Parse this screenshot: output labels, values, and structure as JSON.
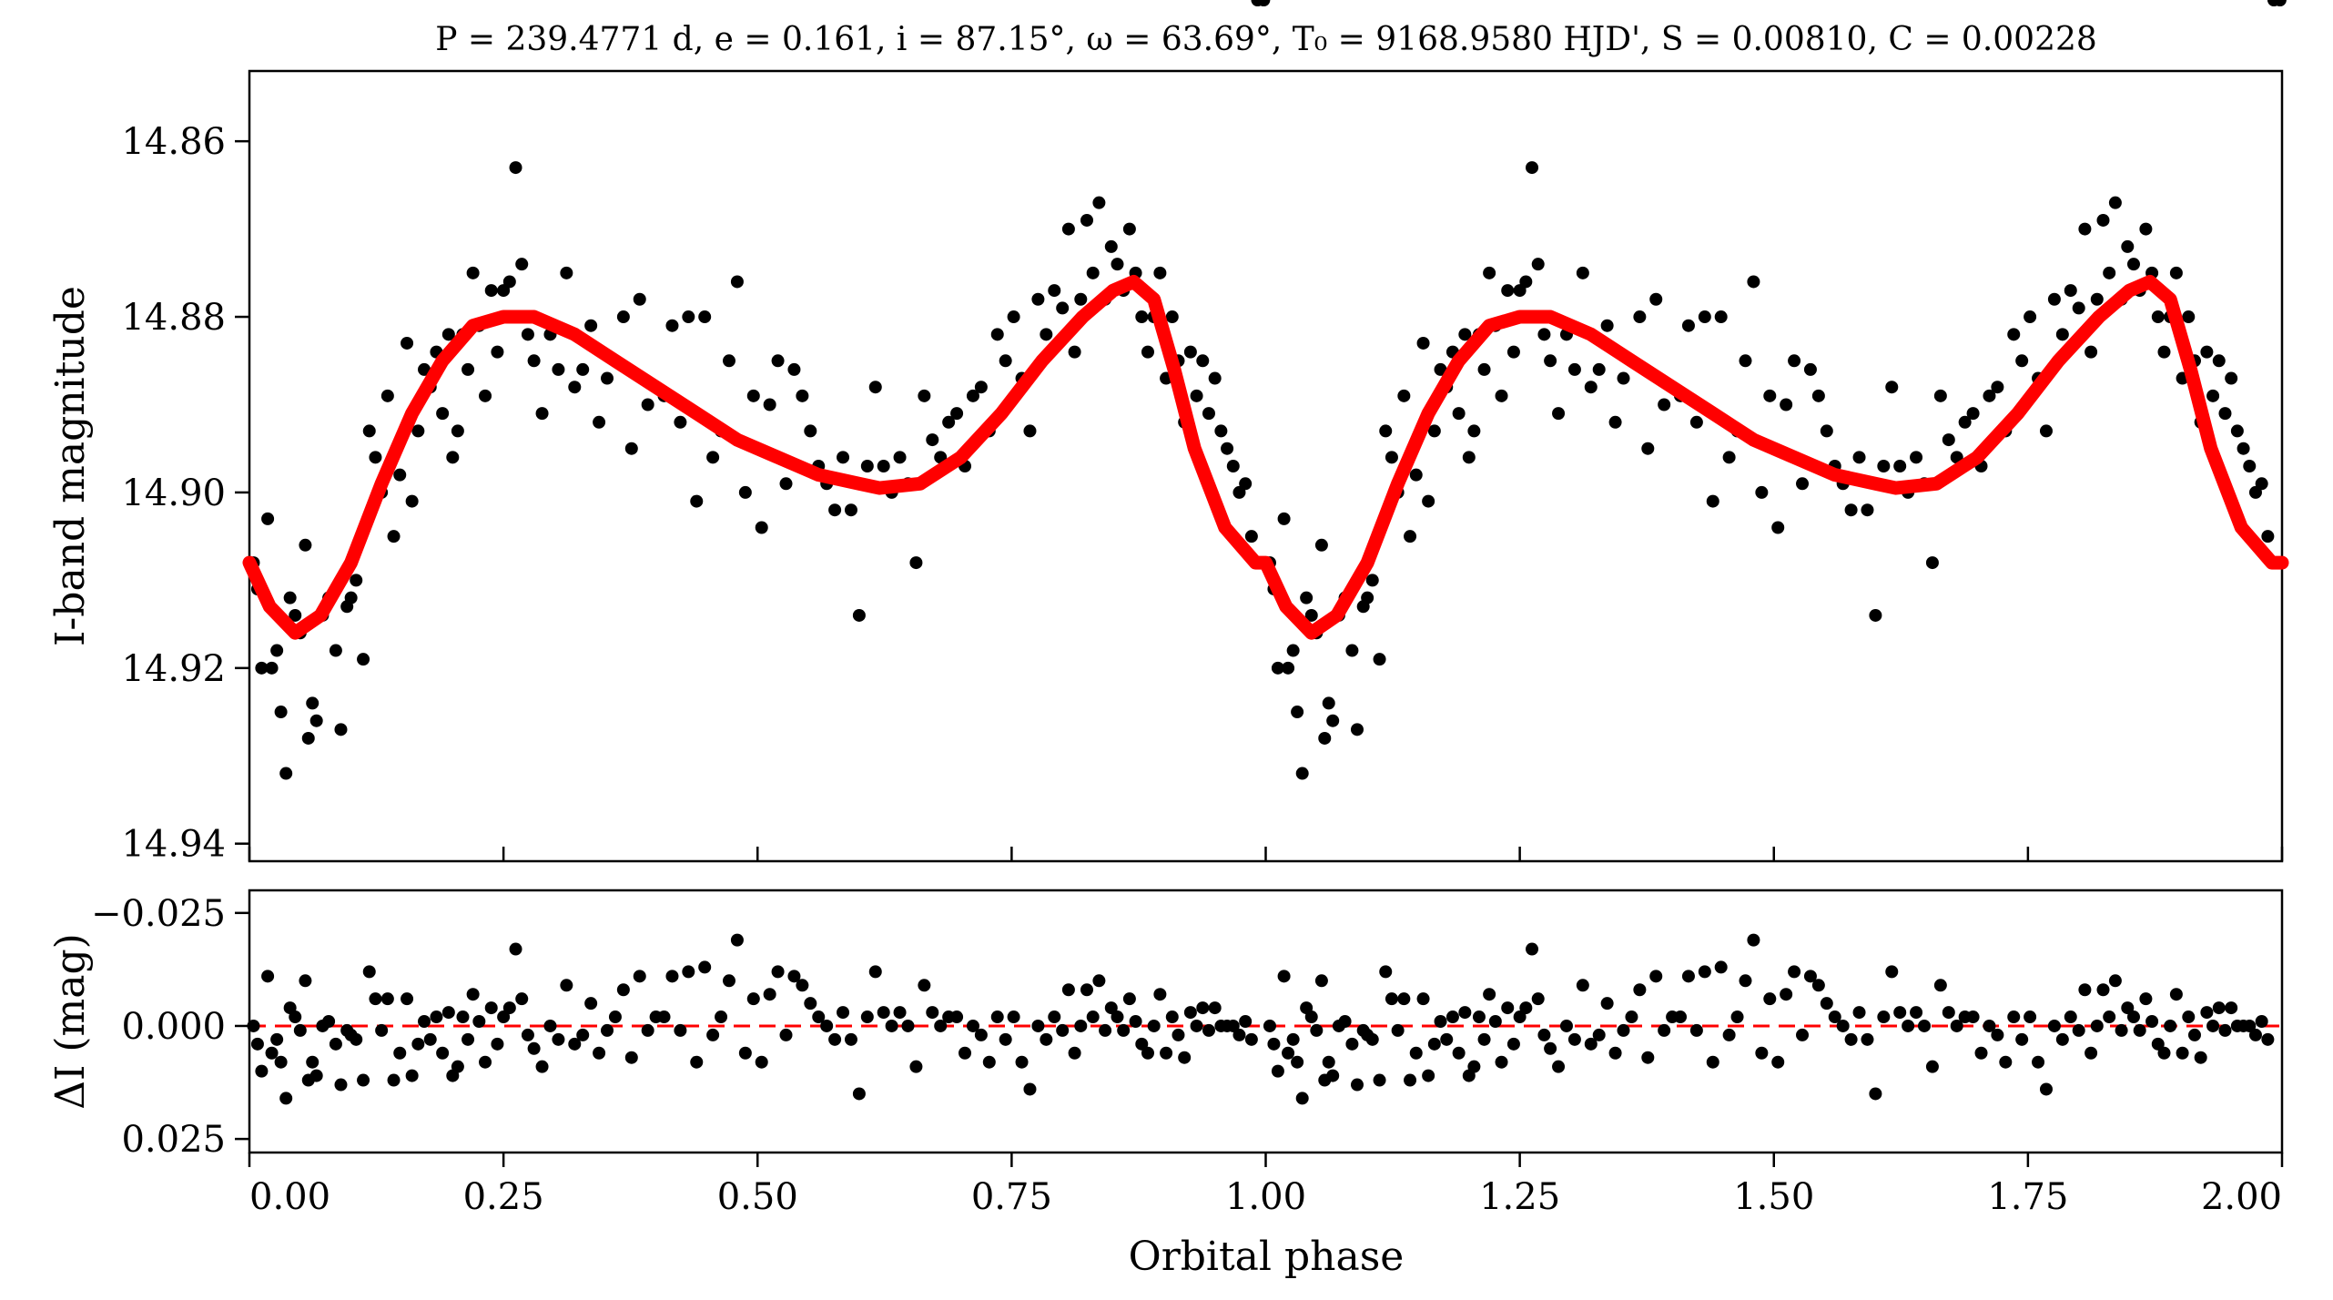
{
  "chart_data": [
    {
      "type": "scatter",
      "title": "P = 239.4771 d, e = 0.161, i = 87.15°, ω = 63.69°, T₀ = 9168.9580 HJD', S = 0.00810, C = 0.00228",
      "xlabel": "",
      "ylabel": "I-band magnitude",
      "xlim": [
        0.0,
        2.0
      ],
      "ylim": [
        14.852,
        14.942
      ],
      "y_inverted": true,
      "y_ticks": [
        "14.86",
        "14.88",
        "14.90",
        "14.92",
        "14.94"
      ],
      "y_tick_values": [
        14.86,
        14.88,
        14.9,
        14.92,
        14.94
      ],
      "x_tick_values": [
        0.0,
        0.25,
        0.5,
        0.75,
        1.0,
        1.25,
        1.5,
        1.75,
        2.0
      ],
      "grid": false,
      "colors": {
        "points": "#000000",
        "model": "#ff0000"
      },
      "series": [
        {
          "kind": "points",
          "phase": [
            0.004,
            0.008,
            0.012,
            0.018,
            0.022,
            0.027,
            0.031,
            0.036,
            0.04,
            0.045,
            0.05,
            0.055,
            0.058,
            0.062,
            0.066,
            0.072,
            0.078,
            0.085,
            0.09,
            0.096,
            0.1,
            0.105,
            0.112,
            0.118,
            0.124,
            0.13,
            0.136,
            0.142,
            0.148,
            0.155,
            0.16,
            0.166,
            0.172,
            0.178,
            0.184,
            0.19,
            0.196,
            0.2,
            0.205,
            0.21,
            0.215,
            0.22,
            0.226,
            0.232,
            0.238,
            0.244,
            0.25,
            0.256,
            0.262,
            0.268,
            0.274,
            0.28,
            0.288,
            0.296,
            0.304,
            0.312,
            0.32,
            0.328,
            0.336,
            0.344,
            0.352,
            0.36,
            0.368,
            0.376,
            0.384,
            0.392,
            0.4,
            0.408,
            0.416,
            0.424,
            0.432,
            0.44,
            0.448,
            0.456,
            0.464,
            0.472,
            0.48,
            0.488,
            0.496,
            0.504,
            0.512,
            0.52,
            0.528,
            0.536,
            0.544,
            0.552,
            0.56,
            0.568,
            0.576,
            0.584,
            0.592,
            0.6,
            0.608,
            0.616,
            0.624,
            0.632,
            0.64,
            0.648,
            0.656,
            0.664,
            0.672,
            0.68,
            0.688,
            0.696,
            0.704,
            0.712,
            0.72,
            0.728,
            0.736,
            0.744,
            0.752,
            0.76,
            0.768,
            0.776,
            0.784,
            0.792,
            0.8,
            0.806,
            0.812,
            0.818,
            0.824,
            0.83,
            0.836,
            0.842,
            0.848,
            0.854,
            0.86,
            0.866,
            0.872,
            0.878,
            0.884,
            0.89,
            0.896,
            0.902,
            0.908,
            0.914,
            0.92,
            0.926,
            0.932,
            0.938,
            0.944,
            0.95,
            0.956,
            0.962,
            0.968,
            0.974,
            0.98,
            0.986,
            0.992,
            0.998
          ],
          "mag": [
            14.908,
            14.911,
            14.92,
            14.903,
            14.92,
            14.918,
            14.925,
            14.932,
            14.912,
            14.914,
            14.916,
            14.906,
            14.928,
            14.924,
            14.926,
            14.914,
            14.912,
            14.918,
            14.927,
            14.913,
            14.912,
            14.91,
            14.919,
            14.893,
            14.896,
            14.9,
            14.889,
            14.905,
            14.898,
            14.883,
            14.901,
            14.893,
            14.886,
            14.888,
            14.884,
            14.891,
            14.882,
            14.896,
            14.893,
            14.882,
            14.886,
            14.875,
            14.881,
            14.889,
            14.877,
            14.884,
            14.877,
            14.876,
            14.863,
            14.874,
            14.882,
            14.885,
            14.891,
            14.882,
            14.886,
            14.875,
            14.888,
            14.886,
            14.881,
            14.892,
            14.887,
            14.885,
            14.88,
            14.895,
            14.878,
            14.89,
            14.888,
            14.889,
            14.881,
            14.892,
            14.88,
            14.901,
            14.88,
            14.896,
            14.893,
            14.885,
            14.876,
            14.9,
            14.889,
            14.904,
            14.89,
            14.885,
            14.899,
            14.886,
            14.889,
            14.893,
            14.897,
            14.899,
            14.902,
            14.896,
            14.902,
            14.914,
            14.897,
            14.888,
            14.897,
            14.9,
            14.896,
            14.899,
            14.908,
            14.889,
            14.894,
            14.896,
            14.892,
            14.891,
            14.897,
            14.889,
            14.888,
            14.893,
            14.882,
            14.885,
            14.88,
            14.887,
            14.893,
            14.878,
            14.882,
            14.877,
            14.879,
            14.87,
            14.884,
            14.878,
            14.869,
            14.875,
            14.867,
            14.878,
            14.872,
            14.874,
            14.877,
            14.87,
            14.875,
            14.88,
            14.884,
            14.88,
            14.875,
            14.887,
            14.88,
            14.885,
            14.892,
            14.884,
            14.889,
            14.885,
            14.891,
            14.887,
            14.893,
            14.895,
            14.897,
            14.9,
            14.899,
            14.905
          ]
        },
        {
          "kind": "model",
          "phase": [
            0.0,
            0.02,
            0.045,
            0.07,
            0.1,
            0.13,
            0.16,
            0.19,
            0.22,
            0.25,
            0.28,
            0.32,
            0.36,
            0.4,
            0.44,
            0.48,
            0.52,
            0.56,
            0.6,
            0.62,
            0.66,
            0.7,
            0.74,
            0.78,
            0.82,
            0.85,
            0.87,
            0.89,
            0.91,
            0.93,
            0.96,
            0.99,
            1.0
          ],
          "mag": [
            14.908,
            14.913,
            14.916,
            14.914,
            14.908,
            14.899,
            14.891,
            14.885,
            14.881,
            14.88,
            14.88,
            14.882,
            14.885,
            14.888,
            14.891,
            14.894,
            14.896,
            14.898,
            14.899,
            14.8995,
            14.899,
            14.896,
            14.891,
            14.885,
            14.88,
            14.877,
            14.876,
            14.878,
            14.886,
            14.895,
            14.904,
            14.908,
            14.908
          ]
        }
      ]
    },
    {
      "type": "scatter",
      "title": "",
      "xlabel": "Orbital phase",
      "ylabel": "ΔI (mag)",
      "xlim": [
        0.0,
        2.0
      ],
      "ylim": [
        -0.03,
        0.028
      ],
      "y_inverted": true,
      "y_ticks": [
        "−0.025",
        "0.000",
        "0.025"
      ],
      "y_tick_values": [
        -0.025,
        0.0,
        0.025
      ],
      "x_ticks": [
        "0.00",
        "0.25",
        "0.50",
        "0.75",
        "1.00",
        "1.25",
        "1.50",
        "1.75",
        "2.00"
      ],
      "x_tick_values": [
        0.0,
        0.25,
        0.5,
        0.75,
        1.0,
        1.25,
        1.5,
        1.75,
        2.0
      ],
      "grid": false,
      "colors": {
        "points": "#000000",
        "zero_line": "#ff0000"
      },
      "series": [
        {
          "kind": "residuals",
          "phase": [
            0.004,
            0.008,
            0.012,
            0.018,
            0.022,
            0.027,
            0.031,
            0.036,
            0.04,
            0.045,
            0.05,
            0.055,
            0.058,
            0.062,
            0.066,
            0.072,
            0.078,
            0.085,
            0.09,
            0.096,
            0.1,
            0.105,
            0.112,
            0.118,
            0.124,
            0.13,
            0.136,
            0.142,
            0.148,
            0.155,
            0.16,
            0.166,
            0.172,
            0.178,
            0.184,
            0.19,
            0.196,
            0.2,
            0.205,
            0.21,
            0.215,
            0.22,
            0.226,
            0.232,
            0.238,
            0.244,
            0.25,
            0.256,
            0.262,
            0.268,
            0.274,
            0.28,
            0.288,
            0.296,
            0.304,
            0.312,
            0.32,
            0.328,
            0.336,
            0.344,
            0.352,
            0.36,
            0.368,
            0.376,
            0.384,
            0.392,
            0.4,
            0.408,
            0.416,
            0.424,
            0.432,
            0.44,
            0.448,
            0.456,
            0.464,
            0.472,
            0.48,
            0.488,
            0.496,
            0.504,
            0.512,
            0.52,
            0.528,
            0.536,
            0.544,
            0.552,
            0.56,
            0.568,
            0.576,
            0.584,
            0.592,
            0.6,
            0.608,
            0.616,
            0.624,
            0.632,
            0.64,
            0.648,
            0.656,
            0.664,
            0.672,
            0.68,
            0.688,
            0.696,
            0.704,
            0.712,
            0.72,
            0.728,
            0.736,
            0.744,
            0.752,
            0.76,
            0.768,
            0.776,
            0.784,
            0.792,
            0.8,
            0.806,
            0.812,
            0.818,
            0.824,
            0.83,
            0.836,
            0.842,
            0.848,
            0.854,
            0.86,
            0.866,
            0.872,
            0.878,
            0.884,
            0.89,
            0.896,
            0.902,
            0.908,
            0.914,
            0.92,
            0.926,
            0.932,
            0.938,
            0.944,
            0.95,
            0.956,
            0.962,
            0.968,
            0.974,
            0.98,
            0.986,
            0.992,
            0.998
          ],
          "dmag": [
            0.0,
            0.004,
            0.01,
            -0.011,
            0.006,
            0.003,
            0.008,
            0.016,
            -0.004,
            -0.002,
            0.001,
            -0.01,
            0.012,
            0.008,
            0.011,
            0.0,
            -0.001,
            0.004,
            0.013,
            0.001,
            0.002,
            0.003,
            0.012,
            -0.012,
            -0.006,
            0.001,
            -0.006,
            0.012,
            0.006,
            -0.006,
            0.011,
            0.004,
            -0.001,
            0.003,
            -0.002,
            0.006,
            -0.003,
            0.011,
            0.009,
            -0.002,
            0.003,
            -0.007,
            -0.001,
            0.008,
            -0.004,
            0.004,
            -0.002,
            -0.004,
            -0.017,
            -0.006,
            0.002,
            0.005,
            0.009,
            0.0,
            0.003,
            -0.009,
            0.004,
            0.002,
            -0.005,
            0.006,
            0.001,
            -0.002,
            -0.008,
            0.007,
            -0.011,
            0.001,
            -0.002,
            -0.002,
            -0.011,
            0.001,
            -0.012,
            0.008,
            -0.013,
            0.002,
            -0.002,
            -0.01,
            -0.019,
            0.006,
            -0.006,
            0.008,
            -0.007,
            -0.012,
            0.002,
            -0.011,
            -0.009,
            -0.005,
            -0.002,
            0.0,
            0.003,
            -0.003,
            0.003,
            0.015,
            -0.002,
            -0.012,
            -0.003,
            0.0,
            -0.003,
            0.0,
            0.009,
            -0.009,
            -0.003,
            0.0,
            -0.002,
            -0.002,
            0.006,
            0.0,
            0.002,
            0.008,
            -0.002,
            0.003,
            -0.002,
            0.008,
            0.014,
            0.0,
            0.003,
            -0.002,
            0.001,
            -0.008,
            0.006,
            0.0,
            -0.008,
            -0.002,
            -0.01,
            0.001,
            -0.004,
            -0.002,
            0.001,
            -0.006,
            -0.001,
            0.004,
            0.006,
            0.0,
            -0.007,
            0.006,
            -0.002,
            0.002,
            0.007,
            -0.003,
            0.0,
            -0.004,
            0.001,
            -0.004,
            0.0,
            0.0,
            0.0,
            0.002,
            -0.001,
            0.003
          ]
        }
      ]
    }
  ]
}
